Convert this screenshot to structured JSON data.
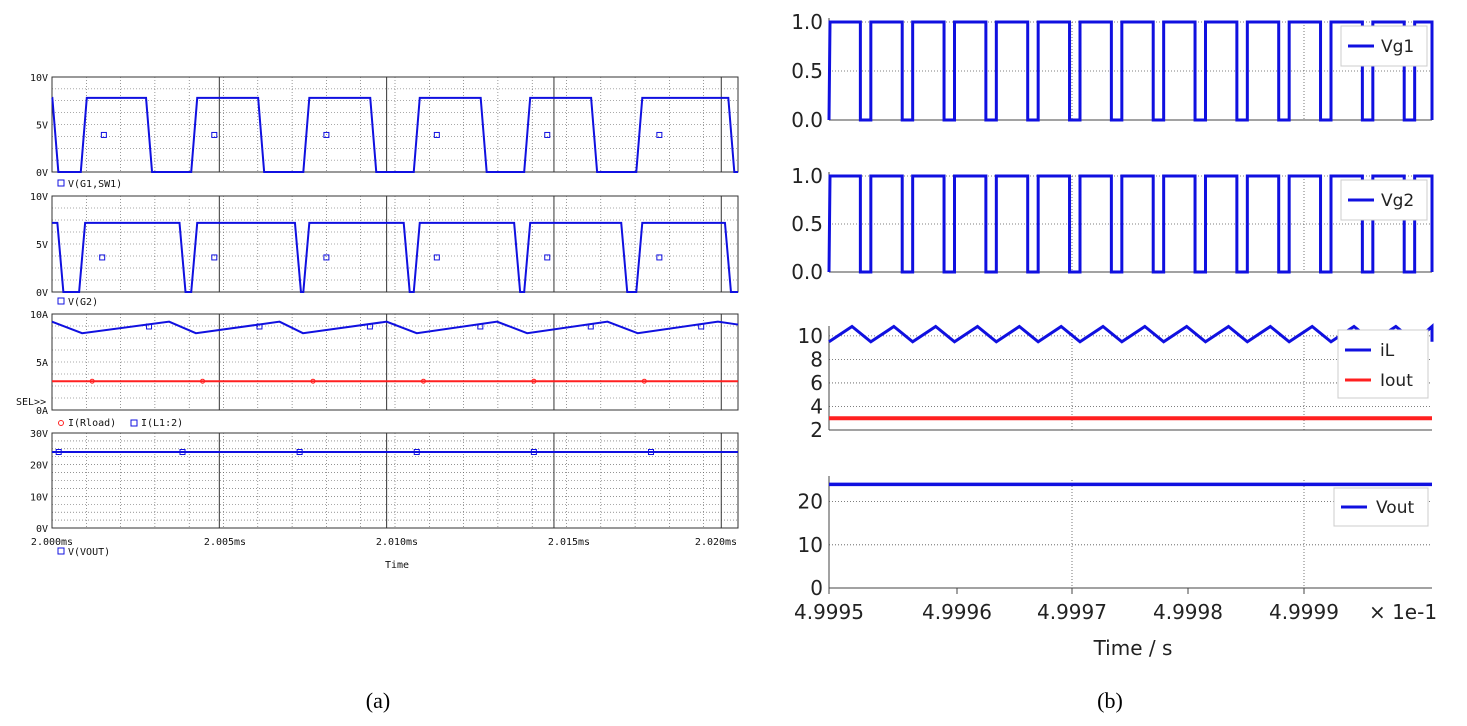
{
  "colors": {
    "blue": "#1010e0",
    "red": "#ff2020",
    "grid": "#333333"
  },
  "panel_a": {
    "caption": "(a)",
    "x_ticks": [
      "2.000ms",
      "2.005ms",
      "2.010ms",
      "2.015ms",
      "2.020ms"
    ],
    "x_label": "Time",
    "sel_label": "SEL>>",
    "subplots": [
      {
        "id": "g1",
        "y_ticks": [
          "0V",
          "5V",
          "10V"
        ],
        "legend": "V(G1,SW1)"
      },
      {
        "id": "g2",
        "y_ticks": [
          "0V",
          "5V",
          "10V"
        ],
        "legend": "V(G2)"
      },
      {
        "id": "cur",
        "y_ticks": [
          "0A",
          "5A",
          "10A"
        ],
        "legend": [
          "I(Rload)",
          "I(L1:2)"
        ]
      },
      {
        "id": "vout",
        "y_ticks": [
          "0V",
          "10V",
          "20V",
          "30V"
        ],
        "legend": "V(VOUT)"
      }
    ]
  },
  "panel_b": {
    "caption": "(b)",
    "x_ticks": [
      "4.9995",
      "4.9996",
      "4.9997",
      "4.9998",
      "4.9999"
    ],
    "x_multiplier": "× 1e-1",
    "x_label": "Time / s",
    "subplots": [
      {
        "id": "vg1",
        "y_ticks": [
          "0.0",
          "0.5",
          "1.0"
        ],
        "legend": [
          "Vg1"
        ]
      },
      {
        "id": "vg2",
        "y_ticks": [
          "0.0",
          "0.5",
          "1.0"
        ],
        "legend": [
          "Vg2"
        ]
      },
      {
        "id": "il",
        "y_ticks": [
          "2",
          "4",
          "6",
          "8",
          "10"
        ],
        "legend": [
          "iL",
          "Iout"
        ]
      },
      {
        "id": "vo",
        "y_ticks": [
          "0",
          "10",
          "20"
        ],
        "legend": [
          "Vout"
        ]
      }
    ]
  },
  "chart_data": [
    {
      "type": "line",
      "panel": "a",
      "x_range_ms": [
        2.0,
        2.0205
      ],
      "series": [
        {
          "name": "V(G1,SW1)",
          "unit": "V",
          "ylim": [
            0,
            10
          ],
          "waveform": "square",
          "high": 7.8,
          "low": 0,
          "high_intervals_ms": [
            [
              2.0,
              2.0001
            ],
            [
              2.00095,
              2.0029
            ],
            [
              2.00425,
              2.00625
            ],
            [
              2.0076,
              2.0096
            ],
            [
              2.0109,
              2.0129
            ],
            [
              2.0142,
              2.0162
            ],
            [
              2.01755,
              2.0203
            ]
          ]
        },
        {
          "name": "V(G2)",
          "unit": "V",
          "ylim": [
            0,
            10
          ],
          "waveform": "square",
          "high": 7.2,
          "low": 0,
          "high_intervals_ms": [
            [
              2.0,
              2.00025
            ],
            [
              2.0009,
              2.0039
            ],
            [
              2.00425,
              2.00735
            ],
            [
              2.0076,
              2.0106
            ],
            [
              2.0109,
              2.0139
            ],
            [
              2.0142,
              2.0171
            ],
            [
              2.01755,
              2.0202
            ]
          ]
        },
        {
          "name": "I(L1:2)",
          "unit": "A",
          "ylim": [
            0,
            10
          ],
          "waveform": "triangle",
          "min": 8.0,
          "max": 9.2,
          "peaks_ms": [
            2.0,
            2.0035,
            2.0068,
            2.01,
            2.0133,
            2.0166,
            2.0199
          ],
          "valleys_ms": [
            2.0009,
            2.0043,
            2.0075,
            2.0109,
            2.0142,
            2.0175
          ]
        },
        {
          "name": "I(Rload)",
          "unit": "A",
          "ylim": [
            0,
            10
          ],
          "value": 3.0
        },
        {
          "name": "V(VOUT)",
          "unit": "V",
          "ylim": [
            0,
            30
          ],
          "value": 24.0
        }
      ]
    },
    {
      "type": "line",
      "panel": "b",
      "x_range": [
        4.9995,
        4.99998
      ],
      "x_scale_note": "× 1e-1",
      "series": [
        {
          "name": "Vg1",
          "ylim": [
            0,
            1
          ],
          "waveform": "square",
          "high": 1.0,
          "low": 0.0,
          "period_x": 3.33e-05,
          "duty": 0.75,
          "phase_x": 0.0
        },
        {
          "name": "Vg2",
          "ylim": [
            0,
            1
          ],
          "waveform": "square",
          "high": 1.0,
          "low": 0.0,
          "period_x": 3.33e-05,
          "duty": 0.75,
          "phase_x": 0.0
        },
        {
          "name": "iL",
          "ylim": [
            2,
            11
          ],
          "waveform": "sawtooth",
          "min": 9.5,
          "max": 10.8,
          "period_x": 3.33e-05
        },
        {
          "name": "Iout",
          "ylim": [
            2,
            11
          ],
          "value": 3.0
        },
        {
          "name": "Vout",
          "ylim": [
            0,
            25
          ],
          "value": 24.0
        }
      ]
    }
  ]
}
